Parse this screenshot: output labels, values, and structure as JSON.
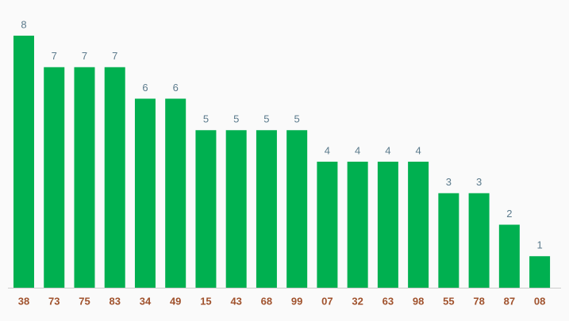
{
  "chart_data": {
    "type": "bar",
    "categories": [
      "38",
      "73",
      "75",
      "83",
      "34",
      "49",
      "15",
      "43",
      "68",
      "99",
      "07",
      "32",
      "63",
      "98",
      "55",
      "78",
      "87",
      "08"
    ],
    "values": [
      8,
      7,
      7,
      7,
      6,
      6,
      5,
      5,
      5,
      5,
      4,
      4,
      4,
      4,
      3,
      3,
      2,
      1
    ],
    "color": "#00b050"
  }
}
